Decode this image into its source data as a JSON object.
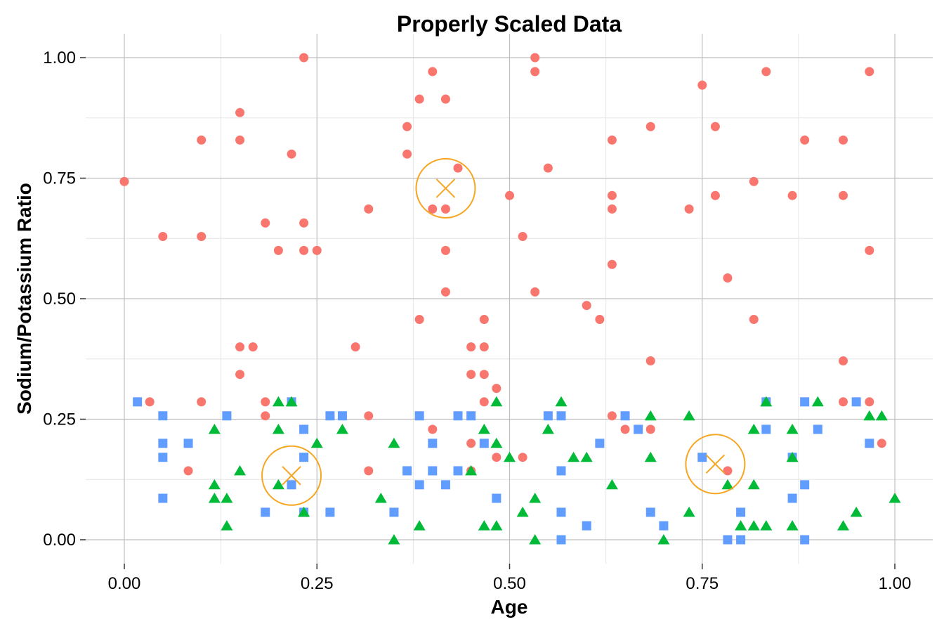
{
  "chart_data": {
    "type": "scatter",
    "title": "Properly Scaled Data",
    "xlabel": "Age",
    "ylabel": "Sodium/Potassium Ratio",
    "xlim": [
      0,
      1
    ],
    "ylim": [
      0,
      1
    ],
    "xticks": [
      0,
      0.25,
      0.5,
      0.75,
      1
    ],
    "yticks": [
      0,
      0.25,
      0.5,
      0.75,
      1
    ],
    "xtick_labels": [
      "0.00",
      "0.25",
      "0.50",
      "0.75",
      "1.00"
    ],
    "ytick_labels": [
      "0.00",
      "0.25",
      "0.50",
      "0.75",
      "1.00"
    ],
    "grid": true,
    "legend": "none",
    "colors": {
      "series_red": "#F8766D",
      "series_blue": "#619CFF",
      "series_green": "#00BA38",
      "centroid": "#F5A623",
      "grid_major": "#BFBFBF",
      "grid_minor": "#E6E6E6",
      "axis_text": "#000000"
    },
    "series": [
      {
        "marker": "circle",
        "color": "#F8766D",
        "points": [
          [
            0.0,
            0.743
          ],
          [
            0.033,
            0.286
          ],
          [
            0.05,
            0.629
          ],
          [
            0.083,
            0.143
          ],
          [
            0.1,
            0.829
          ],
          [
            0.1,
            0.629
          ],
          [
            0.1,
            0.286
          ],
          [
            0.133,
            0.257
          ],
          [
            0.15,
            0.886
          ],
          [
            0.15,
            0.829
          ],
          [
            0.15,
            0.4
          ],
          [
            0.15,
            0.343
          ],
          [
            0.167,
            0.4
          ],
          [
            0.183,
            0.657
          ],
          [
            0.183,
            0.286
          ],
          [
            0.183,
            0.257
          ],
          [
            0.2,
            0.6
          ],
          [
            0.217,
            0.8
          ],
          [
            0.233,
            1.0
          ],
          [
            0.233,
            0.657
          ],
          [
            0.233,
            0.6
          ],
          [
            0.25,
            0.6
          ],
          [
            0.3,
            0.4
          ],
          [
            0.317,
            0.686
          ],
          [
            0.317,
            0.257
          ],
          [
            0.317,
            0.143
          ],
          [
            0.367,
            0.857
          ],
          [
            0.367,
            0.8
          ],
          [
            0.383,
            0.914
          ],
          [
            0.383,
            0.457
          ],
          [
            0.4,
            0.971
          ],
          [
            0.4,
            0.686
          ],
          [
            0.4,
            0.229
          ],
          [
            0.417,
            0.914
          ],
          [
            0.417,
            0.686
          ],
          [
            0.417,
            0.6
          ],
          [
            0.417,
            0.514
          ],
          [
            0.433,
            0.771
          ],
          [
            0.45,
            0.4
          ],
          [
            0.45,
            0.343
          ],
          [
            0.45,
            0.2
          ],
          [
            0.45,
            0.143
          ],
          [
            0.467,
            0.457
          ],
          [
            0.467,
            0.4
          ],
          [
            0.467,
            0.343
          ],
          [
            0.467,
            0.286
          ],
          [
            0.483,
            0.314
          ],
          [
            0.483,
            0.171
          ],
          [
            0.5,
            0.714
          ],
          [
            0.517,
            0.629
          ],
          [
            0.517,
            0.171
          ],
          [
            0.533,
            1.0
          ],
          [
            0.533,
            0.971
          ],
          [
            0.533,
            0.514
          ],
          [
            0.55,
            0.771
          ],
          [
            0.6,
            0.486
          ],
          [
            0.617,
            0.457
          ],
          [
            0.633,
            0.829
          ],
          [
            0.633,
            0.714
          ],
          [
            0.633,
            0.686
          ],
          [
            0.633,
            0.571
          ],
          [
            0.633,
            0.257
          ],
          [
            0.65,
            0.229
          ],
          [
            0.683,
            0.857
          ],
          [
            0.683,
            0.371
          ],
          [
            0.683,
            0.229
          ],
          [
            0.733,
            0.686
          ],
          [
            0.75,
            0.943
          ],
          [
            0.767,
            0.857
          ],
          [
            0.767,
            0.714
          ],
          [
            0.783,
            0.543
          ],
          [
            0.783,
            0.143
          ],
          [
            0.817,
            0.743
          ],
          [
            0.817,
            0.457
          ],
          [
            0.833,
            0.971
          ],
          [
            0.867,
            0.714
          ],
          [
            0.883,
            0.829
          ],
          [
            0.933,
            0.829
          ],
          [
            0.933,
            0.714
          ],
          [
            0.933,
            0.371
          ],
          [
            0.933,
            0.286
          ],
          [
            0.967,
            0.971
          ],
          [
            0.967,
            0.6
          ],
          [
            0.967,
            0.286
          ],
          [
            0.983,
            0.2
          ]
        ]
      },
      {
        "marker": "square",
        "color": "#619CFF",
        "points": [
          [
            0.017,
            0.286
          ],
          [
            0.05,
            0.257
          ],
          [
            0.05,
            0.2
          ],
          [
            0.05,
            0.171
          ],
          [
            0.05,
            0.086
          ],
          [
            0.083,
            0.2
          ],
          [
            0.133,
            0.257
          ],
          [
            0.183,
            0.057
          ],
          [
            0.217,
            0.286
          ],
          [
            0.217,
            0.114
          ],
          [
            0.233,
            0.229
          ],
          [
            0.233,
            0.171
          ],
          [
            0.233,
            0.057
          ],
          [
            0.267,
            0.257
          ],
          [
            0.267,
            0.057
          ],
          [
            0.283,
            0.257
          ],
          [
            0.35,
            0.057
          ],
          [
            0.367,
            0.143
          ],
          [
            0.383,
            0.257
          ],
          [
            0.383,
            0.114
          ],
          [
            0.4,
            0.2
          ],
          [
            0.4,
            0.143
          ],
          [
            0.417,
            0.114
          ],
          [
            0.433,
            0.257
          ],
          [
            0.433,
            0.143
          ],
          [
            0.45,
            0.257
          ],
          [
            0.467,
            0.2
          ],
          [
            0.483,
            0.086
          ],
          [
            0.55,
            0.257
          ],
          [
            0.567,
            0.257
          ],
          [
            0.567,
            0.143
          ],
          [
            0.567,
            0.057
          ],
          [
            0.567,
            0.0
          ],
          [
            0.6,
            0.029
          ],
          [
            0.617,
            0.2
          ],
          [
            0.65,
            0.257
          ],
          [
            0.667,
            0.229
          ],
          [
            0.683,
            0.057
          ],
          [
            0.7,
            0.029
          ],
          [
            0.75,
            0.171
          ],
          [
            0.783,
            0.0
          ],
          [
            0.8,
            0.057
          ],
          [
            0.8,
            0.0
          ],
          [
            0.833,
            0.286
          ],
          [
            0.833,
            0.229
          ],
          [
            0.867,
            0.171
          ],
          [
            0.867,
            0.086
          ],
          [
            0.883,
            0.286
          ],
          [
            0.883,
            0.114
          ],
          [
            0.883,
            0.0
          ],
          [
            0.9,
            0.229
          ],
          [
            0.95,
            0.286
          ],
          [
            0.967,
            0.2
          ]
        ]
      },
      {
        "marker": "triangle",
        "color": "#00BA38",
        "points": [
          [
            0.117,
            0.229
          ],
          [
            0.117,
            0.114
          ],
          [
            0.117,
            0.086
          ],
          [
            0.133,
            0.086
          ],
          [
            0.133,
            0.029
          ],
          [
            0.15,
            0.143
          ],
          [
            0.2,
            0.286
          ],
          [
            0.2,
            0.229
          ],
          [
            0.2,
            0.114
          ],
          [
            0.217,
            0.286
          ],
          [
            0.233,
            0.057
          ],
          [
            0.25,
            0.2
          ],
          [
            0.283,
            0.229
          ],
          [
            0.333,
            0.086
          ],
          [
            0.35,
            0.2
          ],
          [
            0.35,
            0.0
          ],
          [
            0.383,
            0.029
          ],
          [
            0.45,
            0.143
          ],
          [
            0.467,
            0.229
          ],
          [
            0.467,
            0.029
          ],
          [
            0.483,
            0.286
          ],
          [
            0.483,
            0.2
          ],
          [
            0.483,
            0.029
          ],
          [
            0.5,
            0.171
          ],
          [
            0.517,
            0.057
          ],
          [
            0.533,
            0.086
          ],
          [
            0.533,
            0.0
          ],
          [
            0.55,
            0.229
          ],
          [
            0.567,
            0.286
          ],
          [
            0.583,
            0.171
          ],
          [
            0.6,
            0.171
          ],
          [
            0.633,
            0.114
          ],
          [
            0.683,
            0.257
          ],
          [
            0.683,
            0.171
          ],
          [
            0.7,
            0.0
          ],
          [
            0.733,
            0.257
          ],
          [
            0.733,
            0.057
          ],
          [
            0.783,
            0.114
          ],
          [
            0.8,
            0.029
          ],
          [
            0.817,
            0.229
          ],
          [
            0.817,
            0.114
          ],
          [
            0.817,
            0.029
          ],
          [
            0.833,
            0.286
          ],
          [
            0.833,
            0.029
          ],
          [
            0.867,
            0.229
          ],
          [
            0.867,
            0.171
          ],
          [
            0.867,
            0.029
          ],
          [
            0.9,
            0.286
          ],
          [
            0.933,
            0.029
          ],
          [
            0.95,
            0.057
          ],
          [
            0.967,
            0.257
          ],
          [
            0.983,
            0.257
          ],
          [
            1.0,
            0.086
          ]
        ]
      }
    ],
    "centroids": [
      [
        0.417,
        0.729
      ],
      [
        0.217,
        0.133
      ],
      [
        0.767,
        0.157
      ]
    ]
  }
}
